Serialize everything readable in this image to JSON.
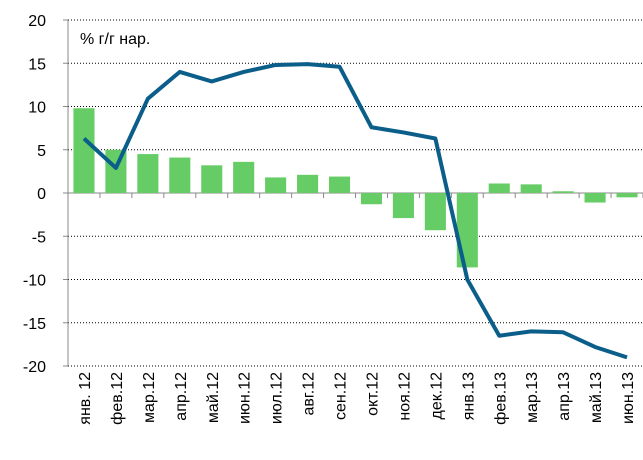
{
  "chart_data": {
    "type": "bar",
    "annotation": "% г/г нар.",
    "categories": [
      "янв. 12",
      "фев.12",
      "мар.12",
      "апр.12",
      "май.12",
      "июн.12",
      "июл.12",
      "авг.12",
      "сен.12",
      "окт.12",
      "ноя.12",
      "дек.12",
      "янв.13",
      "фев.13",
      "мар.13",
      "апр.13",
      "май.13",
      "июн.13"
    ],
    "series": [
      {
        "type": "bar",
        "color": "#66cc66",
        "values": [
          9.8,
          5.0,
          4.5,
          4.1,
          3.2,
          3.6,
          1.8,
          2.1,
          1.9,
          -1.3,
          -2.9,
          -4.3,
          -8.6,
          1.1,
          1.0,
          0.2,
          -1.1,
          -0.5
        ]
      },
      {
        "type": "line",
        "color": "#0b5e8a",
        "values": [
          6.3,
          2.9,
          10.9,
          14.0,
          12.9,
          14.0,
          14.8,
          14.9,
          14.6,
          7.6,
          7.0,
          6.3,
          -10.0,
          -16.5,
          -16.0,
          -16.1,
          -17.8,
          -19.0
        ]
      }
    ],
    "ylim": [
      -20,
      20
    ],
    "yticks": [
      -20,
      -15,
      -10,
      -5,
      0,
      5,
      10,
      15,
      20
    ],
    "grid": true
  }
}
